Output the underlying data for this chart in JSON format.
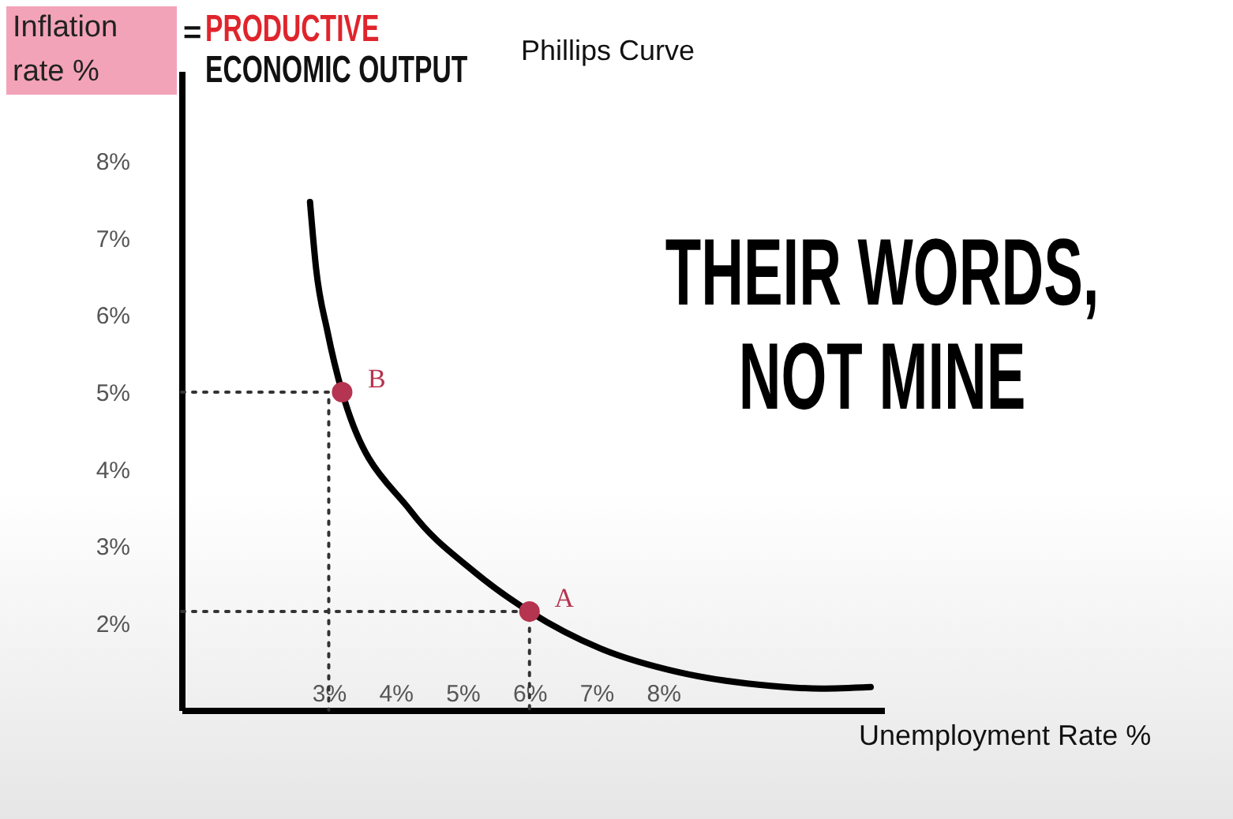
{
  "chart_data": {
    "type": "line",
    "title": "Phillips Curve",
    "xlabel": "Unemployment Rate %",
    "ylabel": "Inflation rate %",
    "xlim": [
      0.8,
      11.3
    ],
    "ylim": [
      0.87,
      9.17
    ],
    "xticks": [
      {
        "value": 3,
        "label": "3%"
      },
      {
        "value": 4,
        "label": "4%"
      },
      {
        "value": 5,
        "label": "5%"
      },
      {
        "value": 6,
        "label": "6%"
      },
      {
        "value": 7,
        "label": "7%"
      },
      {
        "value": 8,
        "label": "8%"
      }
    ],
    "yticks": [
      {
        "value": 2,
        "label": "2%"
      },
      {
        "value": 3,
        "label": "3%"
      },
      {
        "value": 4,
        "label": "4%"
      },
      {
        "value": 5,
        "label": "5%"
      },
      {
        "value": 6,
        "label": "6%"
      },
      {
        "value": 7,
        "label": "7%"
      },
      {
        "value": 8,
        "label": "8%"
      }
    ],
    "series": [
      {
        "color": "#000000",
        "x": [
          2.72,
          2.81,
          2.98,
          3.2,
          4.23,
          5.17,
          6,
          7.06,
          8.24,
          9.42,
          10.36,
          11.1
        ],
        "values": [
          7.47,
          6.61,
          5.79,
          5,
          3.45,
          2.67,
          2.15,
          1.67,
          1.36,
          1.2,
          1.15,
          1.17
        ]
      },
      {
        "color": "#333333",
        "line_style": "dotted",
        "x": [
          0.8,
          3,
          3
        ],
        "values": [
          5,
          5,
          0.87
        ]
      },
      {
        "color": "#333333",
        "line_style": "dotted",
        "x": [
          0.8,
          6,
          6
        ],
        "values": [
          2.15,
          2.15,
          0.87
        ]
      },
      {
        "type": "scatter",
        "color": "#b5344f",
        "marker": "circle",
        "x": [
          3.2,
          6
        ],
        "values": [
          5,
          2.15
        ]
      }
    ],
    "annotations": [
      "=",
      "PRODUCTIVE",
      "ECONOMIC OUTPUT",
      "THEIR WORDS, NOT MINE",
      {
        "text": "B",
        "x": 3.2,
        "y": 5
      },
      {
        "text": "A",
        "x": 6,
        "y": 2.15
      }
    ]
  }
}
